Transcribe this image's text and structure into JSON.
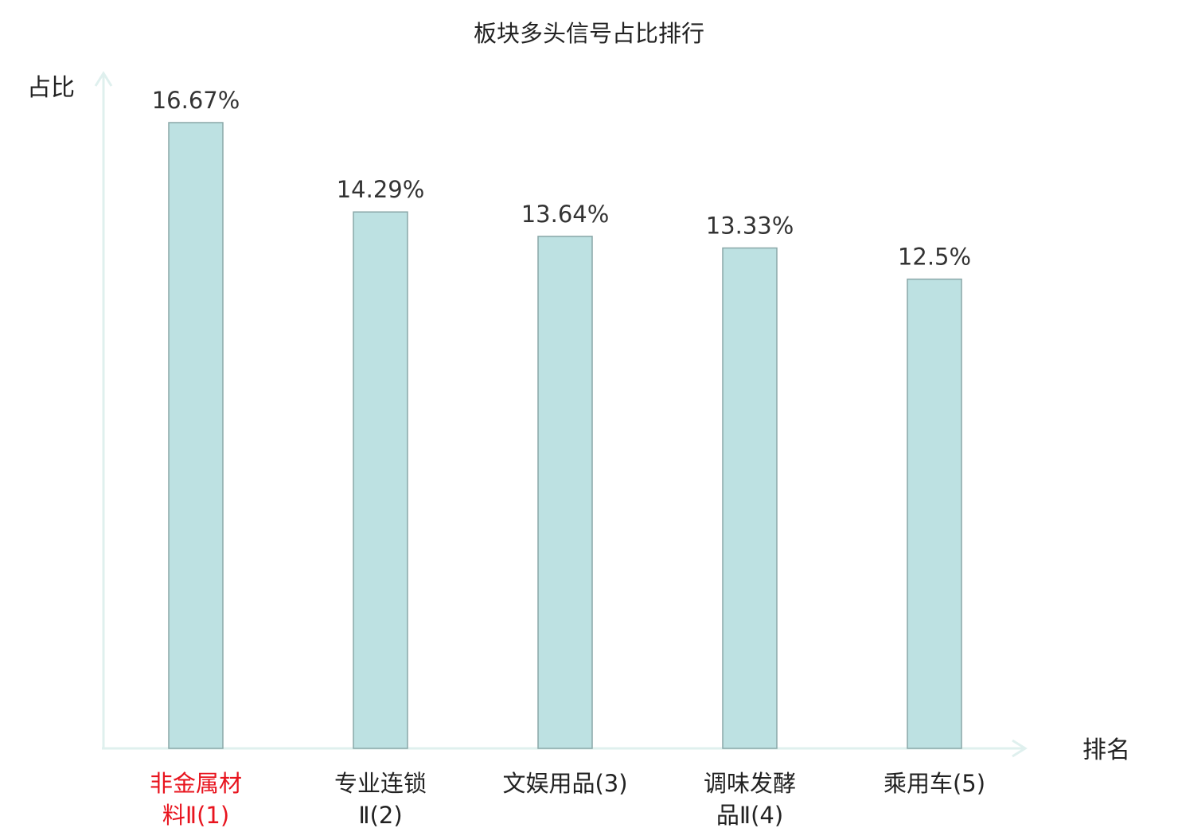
{
  "chart_data": {
    "type": "bar",
    "title": "板块多头信号占比排行",
    "ylabel": "占比",
    "xlabel": "排名",
    "categories": [
      [
        "非金属材",
        "料Ⅱ(1)"
      ],
      [
        "专业连锁",
        "Ⅱ(2)"
      ],
      [
        "文娱用品(3)"
      ],
      [
        "调味发酵",
        "品Ⅱ(4)"
      ],
      [
        "乘用车(5)"
      ]
    ],
    "values": [
      16.67,
      14.29,
      13.64,
      13.33,
      12.5
    ],
    "value_labels": [
      "16.67%",
      "14.29%",
      "13.64%",
      "13.33%",
      "12.5%"
    ],
    "highlight_index": 0,
    "ylim": [
      0,
      16.67
    ],
    "grid": false,
    "colors": {
      "bar_fill": "#bde1e2",
      "bar_stroke": "#8aa7a8",
      "axis": "#dff0ee",
      "highlight_text": "#e8141e"
    }
  }
}
